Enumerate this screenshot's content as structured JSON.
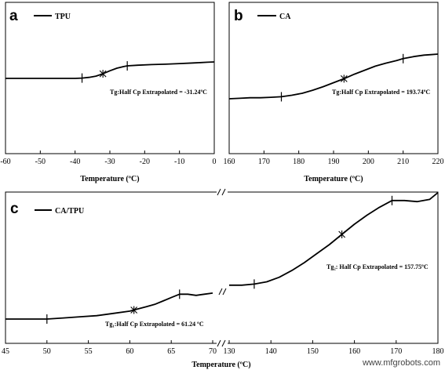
{
  "watermark": "www.mfgrobots.com",
  "chart_data": [
    {
      "panel": "a",
      "type": "line",
      "legend": "TPU",
      "xlabel": "Temperature (ºC)",
      "xlim": [
        -60,
        0
      ],
      "xticks": [
        -60,
        -50,
        -40,
        -30,
        -20,
        -10,
        0
      ],
      "annotation": "Tg:Half Cp Extrapolated = -31.24ºC",
      "series": [
        {
          "x": [
            -60,
            -55,
            -50,
            -45,
            -40,
            -38,
            -36,
            -34,
            -32,
            -30,
            -28,
            -26,
            -25,
            -22,
            -18,
            -14,
            -10,
            -6,
            -2,
            0
          ],
          "y": [
            0.0,
            0.0,
            0.0,
            0.0,
            0.0,
            0.01,
            0.03,
            0.07,
            0.14,
            0.23,
            0.31,
            0.36,
            0.38,
            0.4,
            0.42,
            0.43,
            0.45,
            0.47,
            0.49,
            0.5
          ]
        }
      ],
      "markers": {
        "ticks_at": [
          -38,
          -25
        ],
        "star_at": -32
      }
    },
    {
      "panel": "b",
      "type": "line",
      "legend": "CA",
      "xlabel": "Temperature (ºC)",
      "xlim": [
        160,
        220
      ],
      "xticks": [
        160,
        170,
        180,
        190,
        200,
        210,
        220
      ],
      "annotation": "Tg:Half Cp Extrapolated = 193.74ºC",
      "series": [
        {
          "x": [
            160,
            163,
            166,
            169,
            172,
            175,
            178,
            181,
            184,
            187,
            190,
            193,
            196,
            199,
            202,
            205,
            208,
            210,
            213,
            216,
            218,
            220
          ],
          "y": [
            0.0,
            0.01,
            0.02,
            0.02,
            0.03,
            0.04,
            0.07,
            0.11,
            0.17,
            0.24,
            0.32,
            0.4,
            0.49,
            0.57,
            0.65,
            0.71,
            0.76,
            0.8,
            0.84,
            0.87,
            0.88,
            0.89
          ]
        }
      ],
      "markers": {
        "ticks_at": [
          175,
          210
        ],
        "star_at": 193
      }
    },
    {
      "panel": "c",
      "type": "line",
      "legend": "CA/TPU",
      "xlabel": "Temperature (ºC)",
      "xlim_left": [
        45,
        70
      ],
      "xlim_right": [
        130,
        180
      ],
      "xticks_left": [
        45,
        50,
        55,
        60,
        65,
        70
      ],
      "xticks_right": [
        130,
        140,
        150,
        160,
        170,
        180
      ],
      "annotation_left": "Tg₁:Half Cp Extrapolated = 61.24 ºC",
      "annotation_right": "Tg₂: Half Cp Extrapolated = 157.75ºC",
      "series": [
        {
          "name_hint": "low-T segment",
          "x": [
            45,
            48,
            50,
            52,
            54,
            56,
            58,
            60,
            61,
            62,
            63,
            64,
            65,
            66,
            67,
            68,
            69,
            70
          ],
          "y": [
            0.0,
            0.0,
            0.0,
            0.01,
            0.02,
            0.03,
            0.05,
            0.07,
            0.09,
            0.11,
            0.13,
            0.16,
            0.19,
            0.22,
            0.22,
            0.21,
            0.22,
            0.23
          ]
        },
        {
          "name_hint": "high-T segment",
          "x": [
            130,
            133,
            136,
            139,
            142,
            145,
            148,
            151,
            154,
            157,
            160,
            163,
            166,
            169,
            172,
            175,
            178,
            180
          ],
          "y": [
            0.3,
            0.3,
            0.31,
            0.33,
            0.37,
            0.43,
            0.5,
            0.58,
            0.66,
            0.75,
            0.84,
            0.92,
            0.99,
            1.05,
            1.05,
            1.04,
            1.06,
            1.12
          ]
        }
      ],
      "markers": {
        "ticks_left": [
          50,
          66
        ],
        "star_left": 60.5,
        "ticks_right": [
          136,
          169
        ],
        "star_right": 157
      }
    }
  ]
}
